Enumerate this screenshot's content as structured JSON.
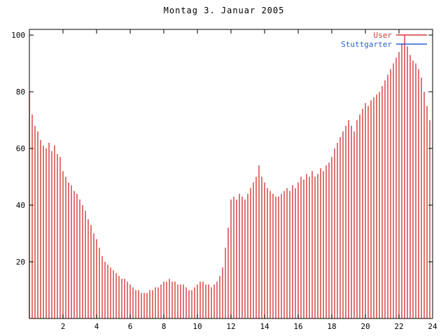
{
  "chart_data": {
    "type": "bar",
    "title": "Montag 3. Januar 2005",
    "xlabel": "",
    "ylabel": "",
    "xlim": [
      0,
      24
    ],
    "ylim": [
      0,
      102
    ],
    "x_ticks": [
      2,
      4,
      6,
      8,
      10,
      12,
      14,
      16,
      18,
      20,
      22,
      24
    ],
    "y_ticks": [
      20,
      40,
      60,
      80,
      100
    ],
    "grid": false,
    "legend_position": "top-right",
    "axis_color": "#000000",
    "background_color": "#ffffff",
    "series": [
      {
        "name": "User",
        "style": "impulses",
        "color": "#d43a3a",
        "x_start": 0,
        "x_step_hours": 0.1666667,
        "values": [
          80,
          72,
          68,
          66,
          63,
          61,
          60,
          62,
          59,
          61,
          58,
          57,
          52,
          50,
          48,
          47,
          45,
          44,
          42,
          40,
          38,
          35,
          33,
          30,
          28,
          25,
          22,
          20,
          19,
          18,
          17,
          16,
          15,
          14,
          14,
          13,
          12,
          11,
          10,
          10,
          9,
          9,
          9,
          10,
          10,
          11,
          11,
          12,
          13,
          13,
          14,
          13,
          13,
          12,
          12,
          12,
          11,
          10,
          10,
          11,
          12,
          13,
          13,
          12,
          12,
          11,
          12,
          13,
          15,
          18,
          25,
          32,
          42,
          43,
          42,
          44,
          43,
          42,
          44,
          46,
          48,
          50,
          54,
          50,
          48,
          46,
          45,
          44,
          43,
          43,
          44,
          45,
          46,
          45,
          47,
          46,
          48,
          50,
          49,
          51,
          50,
          52,
          50,
          51,
          53,
          52,
          54,
          55,
          57,
          60,
          62,
          64,
          66,
          68,
          70,
          68,
          66,
          70,
          72,
          74,
          76,
          75,
          77,
          78,
          79,
          80,
          82,
          84,
          86,
          88,
          90,
          92,
          94,
          97,
          100,
          96,
          93,
          91,
          90,
          88,
          85,
          80,
          75,
          70
        ]
      },
      {
        "name": "Stuttgarter",
        "style": "line",
        "color": "#2a63c8",
        "constant": 0
      }
    ]
  }
}
